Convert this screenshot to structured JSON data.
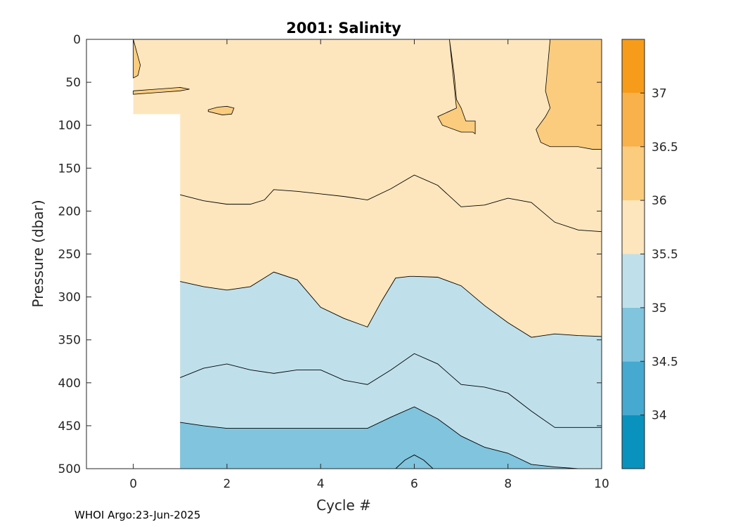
{
  "chart_data": {
    "type": "contour",
    "title": "2001:  Salinity",
    "xlabel": "Cycle #",
    "ylabel": "Pressure (dbar)",
    "xlim": [
      -1,
      10
    ],
    "ylim": [
      0,
      500
    ],
    "y_reversed": true,
    "x_ticks": [
      0,
      2,
      4,
      6,
      8,
      10
    ],
    "y_ticks": [
      0,
      50,
      100,
      150,
      200,
      250,
      300,
      350,
      400,
      450,
      500
    ],
    "data_extent": {
      "x": [
        1,
        10
      ],
      "y": [
        0,
        500
      ],
      "extra_profile_cycle0_to_pressure": 87
    },
    "contour_levels": [
      33.5,
      34,
      34.5,
      35,
      35.5,
      36,
      36.5,
      37,
      37.5
    ],
    "colorbar": {
      "ticks": [
        "34",
        "34.5",
        "35",
        "35.5",
        "36",
        "36.5",
        "37"
      ],
      "colors": [
        "#0a92be",
        "#45a9d0",
        "#80c4de",
        "#bfe0eb",
        "#fde6bd",
        "#fbcc7e",
        "#f9b14c",
        "#f69c1a"
      ]
    },
    "isolines": {
      "s35_5": {
        "x": [
          1,
          1.5,
          2,
          2.5,
          3,
          3.5,
          4,
          4.5,
          5,
          5.3,
          5.6,
          5.9,
          6,
          6.5,
          7,
          7.5,
          8,
          8.5,
          9,
          9.5,
          10
        ],
        "pressure": [
          282,
          288,
          292,
          288,
          271,
          280,
          312,
          325,
          335,
          305,
          278,
          276,
          276,
          277,
          287,
          310,
          330,
          347,
          343,
          345,
          346
        ]
      },
      "s35_0": {
        "x": [
          1,
          1.5,
          2,
          2.5,
          3,
          3.5,
          4,
          4.5,
          5,
          5.5,
          6,
          6.5,
          7,
          7.5,
          8,
          8.5,
          9,
          9.5,
          10
        ],
        "pressure": [
          394,
          383,
          378,
          385,
          389,
          385,
          385,
          397,
          402,
          385,
          366,
          378,
          402,
          405,
          412,
          433,
          452,
          452,
          452
        ]
      },
      "s34_5": {
        "x": [
          1,
          1.5,
          2,
          2.5,
          3,
          3.5,
          4,
          4.5,
          5,
          5.5,
          6,
          6.5,
          7,
          7.5,
          8,
          8.5,
          9,
          9.5,
          10
        ],
        "pressure": [
          446,
          450,
          453,
          453,
          453,
          453,
          453,
          453,
          453,
          440,
          428,
          442,
          462,
          475,
          482,
          495,
          498,
          500,
          500
        ]
      },
      "s36_0_main": {
        "x": [
          1,
          1.5,
          2,
          2.5,
          2.8,
          3,
          3.5,
          4,
          4.5,
          5,
          5.5,
          6,
          6.5,
          7,
          7.5,
          8,
          8.5,
          9,
          9.5,
          10
        ],
        "pressure": [
          181,
          188,
          192,
          192,
          187,
          175,
          177,
          180,
          183,
          187,
          174,
          158,
          170,
          195,
          193,
          185,
          190,
          213,
          222,
          224
        ]
      }
    }
  },
  "footer": "WHOI Argo:23-Jun-2025"
}
